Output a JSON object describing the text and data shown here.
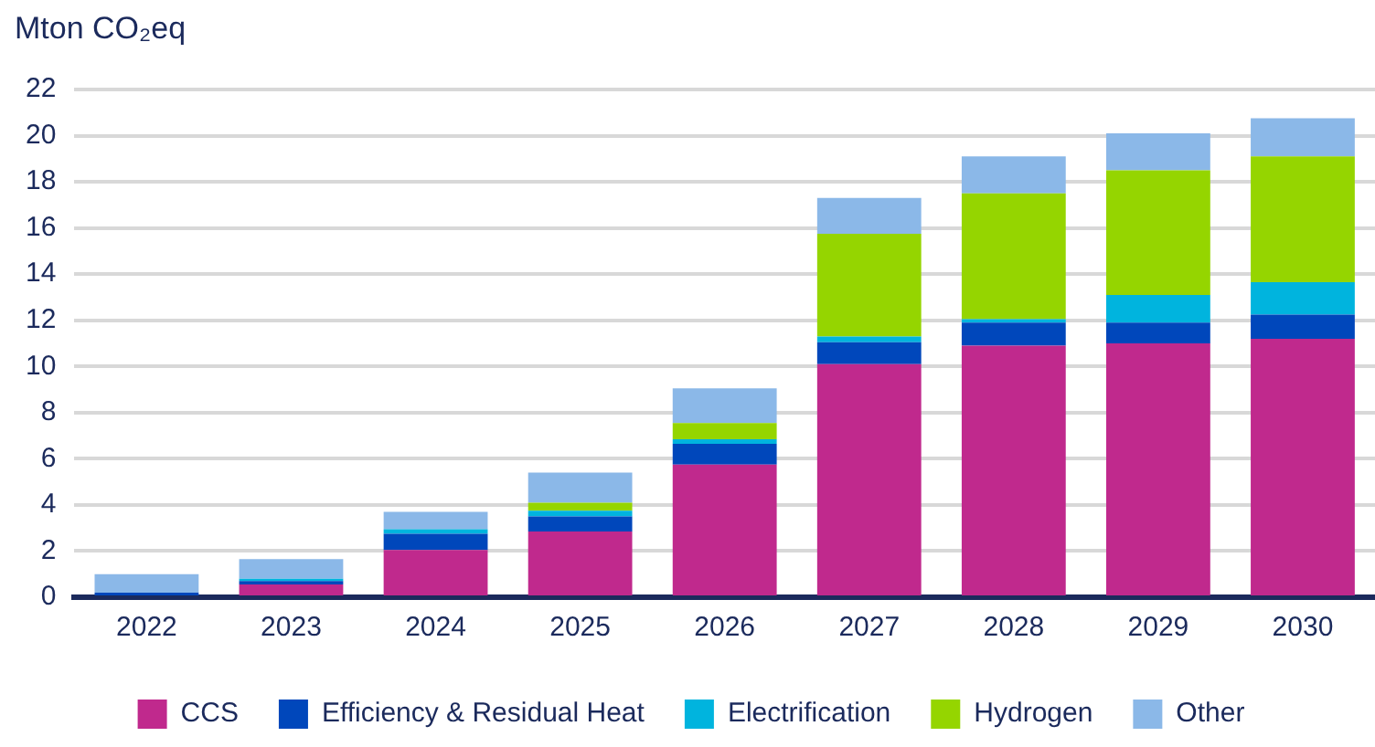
{
  "chart_data": {
    "type": "bar",
    "stacked": true,
    "ylabel": "Mton CO₂eq",
    "categories": [
      "2022",
      "2023",
      "2024",
      "2025",
      "2026",
      "2027",
      "2028",
      "2029",
      "2030"
    ],
    "series": [
      {
        "name": "CCS",
        "color": "#c0298d",
        "values": [
          0,
          0.55,
          2.05,
          2.85,
          5.75,
          10.1,
          10.9,
          11.0,
          11.2
        ]
      },
      {
        "name": "Efficiency & Residual Heat",
        "color": "#0047bb",
        "values": [
          0.2,
          0.15,
          0.7,
          0.65,
          0.9,
          0.95,
          1.0,
          0.9,
          1.05
        ]
      },
      {
        "name": "Electrification",
        "color": "#00b4de",
        "values": [
          0,
          0.1,
          0.2,
          0.25,
          0.2,
          0.25,
          0.15,
          1.2,
          1.4
        ]
      },
      {
        "name": "Hydrogen",
        "color": "#95d500",
        "values": [
          0,
          0,
          0,
          0.35,
          0.7,
          4.45,
          5.45,
          5.4,
          5.45
        ]
      },
      {
        "name": "Other",
        "color": "#8bb8e8",
        "values": [
          0.8,
          0.85,
          0.75,
          1.3,
          1.5,
          1.55,
          1.6,
          1.6,
          1.65
        ]
      }
    ],
    "ylim": [
      0,
      22
    ],
    "yticks": [
      0,
      2,
      4,
      6,
      8,
      10,
      12,
      14,
      16,
      18,
      20,
      22
    ],
    "grid": "y",
    "legend": "bottom"
  }
}
